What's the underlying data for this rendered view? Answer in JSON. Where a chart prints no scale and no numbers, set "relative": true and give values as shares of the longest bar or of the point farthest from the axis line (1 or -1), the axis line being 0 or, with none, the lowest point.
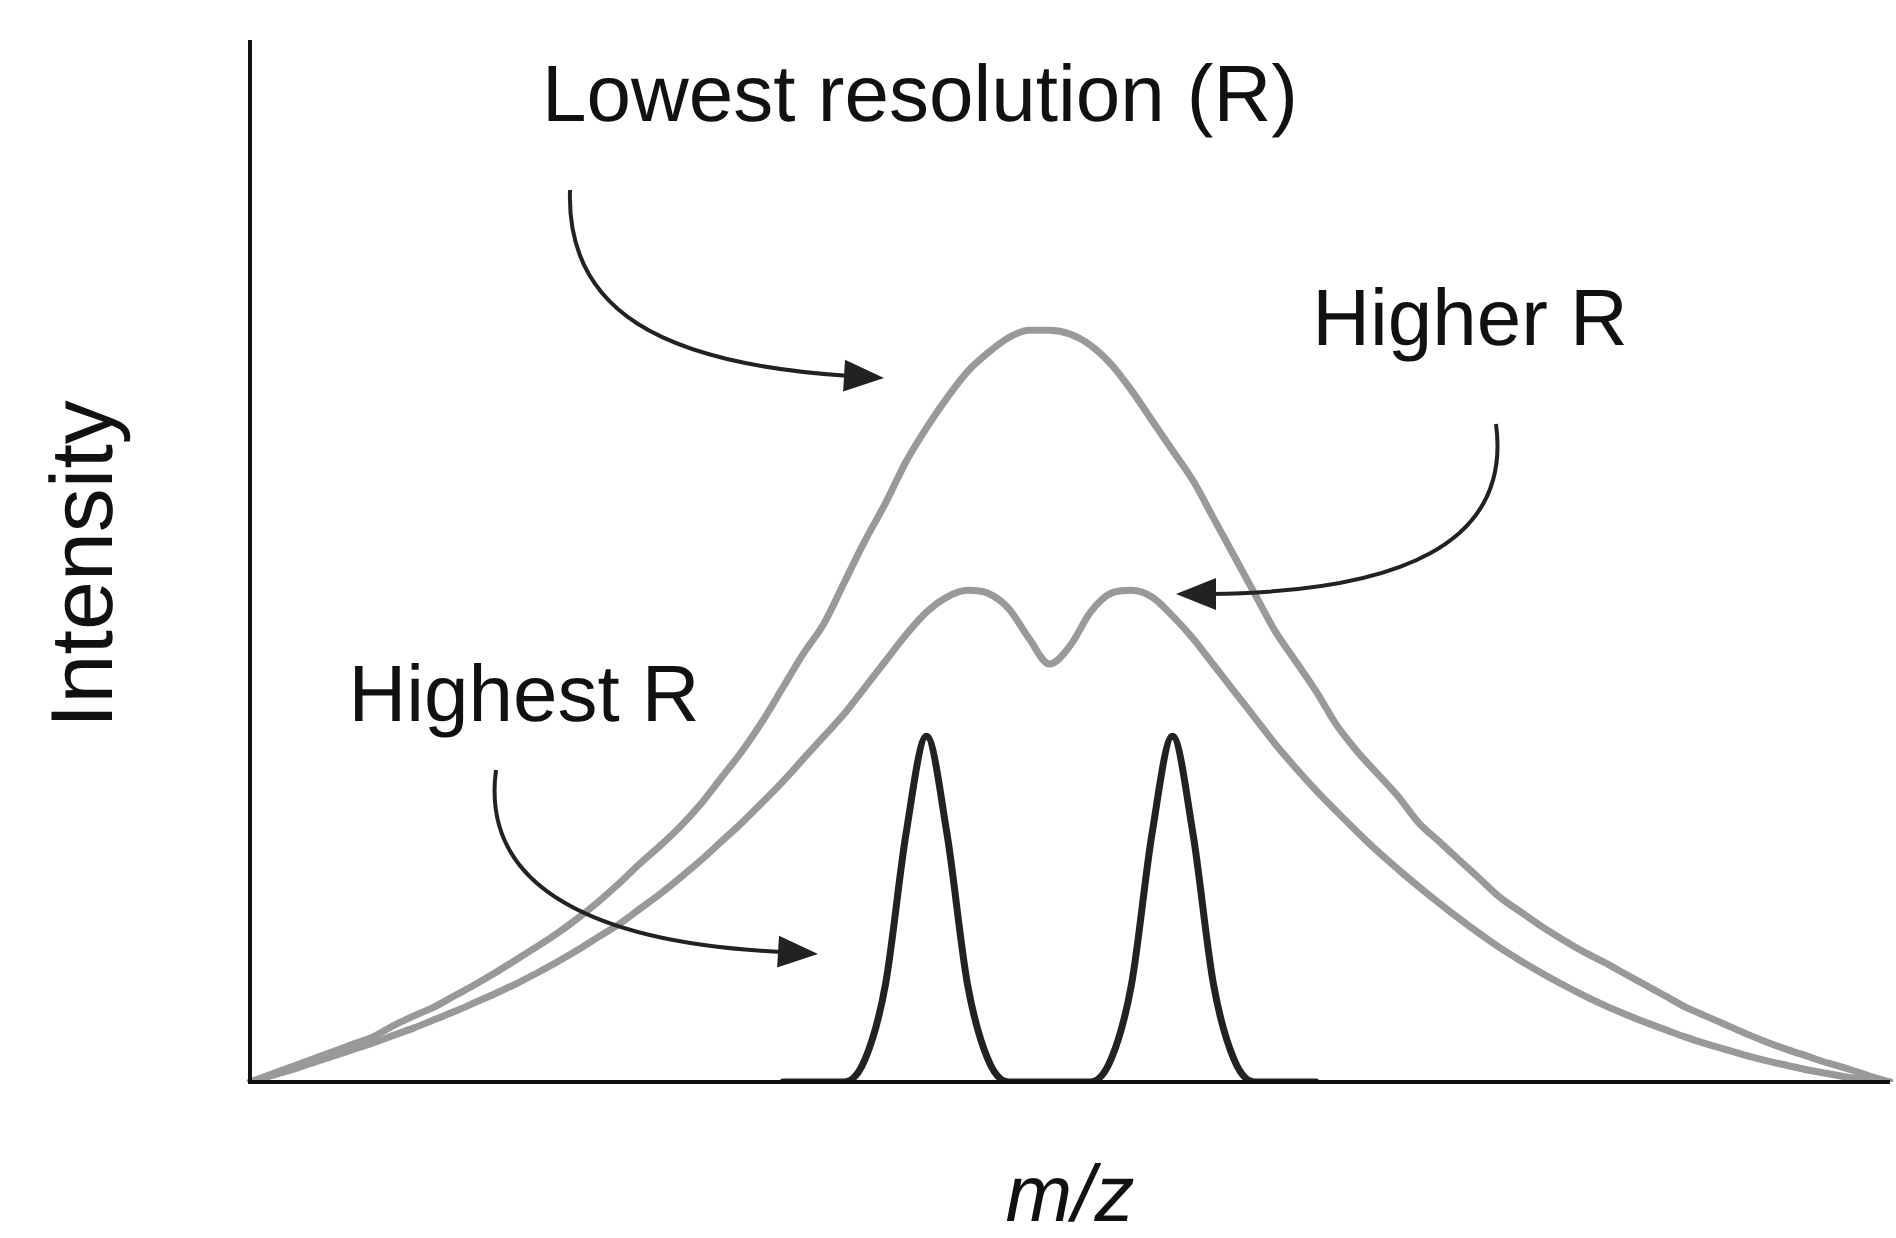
{
  "chart_data": {
    "type": "line",
    "relative": true,
    "xlabel": "m/z",
    "ylabel": "Intensity",
    "legend": false,
    "tick_labels": false,
    "categories": [
      null,
      null,
      null,
      null,
      null,
      null,
      null,
      null,
      null,
      null,
      null,
      null,
      null,
      null,
      null,
      null,
      null,
      null,
      null,
      null,
      null,
      null,
      null,
      null,
      null,
      null,
      null,
      null,
      null,
      null,
      null,
      null,
      null,
      null,
      null,
      null,
      null,
      null,
      null,
      null,
      null,
      null,
      null,
      null,
      null,
      null,
      null,
      null,
      null,
      null,
      null,
      null,
      null,
      null,
      null,
      null,
      null,
      null,
      null,
      null,
      null,
      null,
      null,
      null,
      null,
      null,
      null,
      null,
      null,
      null,
      null,
      null,
      null,
      null,
      null,
      null,
      null,
      null,
      null,
      null,
      null
    ],
    "series": [
      {
        "color": "#999999",
        "values": [
          0,
          0.01,
          0.02,
          0.03,
          0.04,
          0.05,
          0.06,
          0.075,
          0.088,
          0.1,
          0.115,
          0.13,
          0.146,
          0.163,
          0.18,
          0.198,
          0.218,
          0.24,
          0.264,
          0.29,
          0.314,
          0.34,
          0.37,
          0.405,
          0.44,
          0.48,
          0.525,
          0.57,
          0.61,
          0.665,
          0.72,
          0.77,
          0.825,
          0.87,
          0.91,
          0.945,
          0.97,
          0.99,
          1,
          1,
          0.995,
          0.98,
          0.955,
          0.92,
          0.88,
          0.84,
          0.8,
          0.75,
          0.7,
          0.65,
          0.6,
          0.56,
          0.52,
          0.475,
          0.44,
          0.41,
          0.38,
          0.345,
          0.32,
          0.295,
          0.27,
          0.245,
          0.226,
          0.207,
          0.19,
          0.174,
          0.16,
          0.145,
          0.13,
          0.115,
          0.1,
          0.088,
          0.076,
          0.064,
          0.053,
          0.043,
          0.034,
          0.025,
          0.017,
          0.008,
          0
        ]
      },
      {
        "color": "#999999",
        "values": [
          0,
          0.008,
          0.016,
          0.025,
          0.034,
          0.043,
          0.052,
          0.062,
          0.072,
          0.083,
          0.094,
          0.106,
          0.118,
          0.131,
          0.145,
          0.16,
          0.176,
          0.193,
          0.21,
          0.23,
          0.25,
          0.272,
          0.295,
          0.32,
          0.345,
          0.372,
          0.4,
          0.43,
          0.46,
          0.49,
          0.525,
          0.56,
          0.595,
          0.625,
          0.645,
          0.654,
          0.65,
          0.63,
          0.59,
          0.556,
          0.58,
          0.625,
          0.65,
          0.654,
          0.645,
          0.62,
          0.59,
          0.555,
          0.52,
          0.485,
          0.45,
          0.418,
          0.388,
          0.36,
          0.333,
          0.307,
          0.283,
          0.26,
          0.238,
          0.217,
          0.197,
          0.178,
          0.161,
          0.145,
          0.13,
          0.116,
          0.103,
          0.091,
          0.08,
          0.07,
          0.06,
          0.051,
          0.043,
          0.035,
          0.028,
          0.022,
          0.016,
          0.011,
          0.006,
          0.003,
          0
        ]
      },
      {
        "color": "#222222",
        "values": [
          null,
          null,
          null,
          null,
          null,
          null,
          null,
          null,
          null,
          null,
          null,
          null,
          null,
          null,
          null,
          null,
          null,
          null,
          null,
          null,
          null,
          null,
          null,
          null,
          null,
          null,
          0,
          0,
          0,
          0,
          0.03,
          0.13,
          0.33,
          0.46,
          0.33,
          0.13,
          0.03,
          0,
          0,
          0,
          0,
          0,
          0.03,
          0.13,
          0.33,
          0.46,
          0.33,
          0.13,
          0.03,
          0,
          0,
          0,
          0,
          null,
          null,
          null,
          null,
          null,
          null,
          null,
          null,
          null,
          null,
          null,
          null,
          null,
          null,
          null,
          null,
          null,
          null,
          null,
          null,
          null,
          null,
          null,
          null,
          null,
          null,
          null,
          null
        ]
      }
    ],
    "annotations": [
      "Lowest resolution (R)",
      "Higher R",
      "Highest R"
    ]
  }
}
